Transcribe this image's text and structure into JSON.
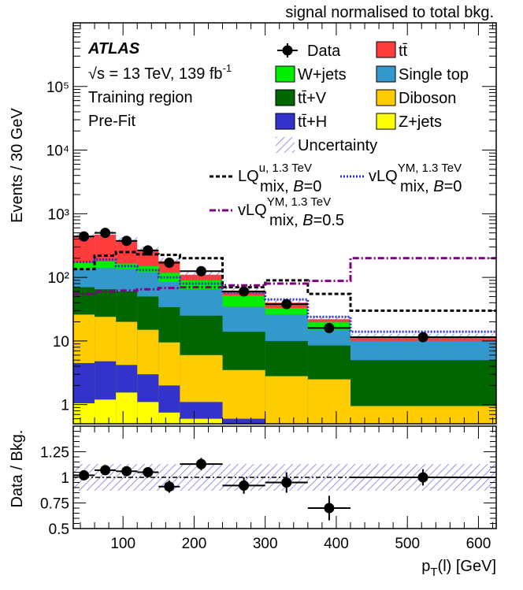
{
  "header_note": "signal normalised to total bkg.",
  "atlas_label": "ATLAS",
  "energy_label": "√s = 13 TeV, 139 fb",
  "lumi_superscript": "-1",
  "region_label": "Training region",
  "fit_label": "Pre-Fit",
  "x_axis_label": "p",
  "x_axis_label_sub": "T",
  "x_axis_label_rest": "(l) [GeV]",
  "y_axis_label_main": "Events / 30 GeV",
  "y_axis_label_ratio": "Data / Bkg.",
  "legend": {
    "data": "Data",
    "ttbar": "tt̄",
    "wjets": "W+jets",
    "singletop": "Single top",
    "ttv": "tt̄+V",
    "diboson": "Diboson",
    "tth": "tt̄+H",
    "zjets": "Z+jets",
    "uncertainty": "Uncertainty",
    "sig1_main": "LQ",
    "sig1_sup": "u, 1.3 TeV",
    "sig1_sub": "mix, ",
    "sig1_b": "B",
    "sig1_bval": "=0",
    "sig2_main": "vLQ",
    "sig2_sup": "YM, 1.3 TeV",
    "sig2_sub": "mix, ",
    "sig2_b": "B",
    "sig2_bval": "=0",
    "sig3_main": "vLQ",
    "sig3_sup": "YM, 1.3 TeV",
    "sig3_sub": "mix, ",
    "sig3_b": "B",
    "sig3_bval": "=0.5"
  },
  "colors": {
    "ttbar": "#ff3b3b",
    "wjets": "#00ee00",
    "singletop": "#3399cc",
    "ttv": "#006600",
    "diboson": "#ffcc00",
    "tth": "#3333cc",
    "zjets": "#ffff00",
    "uncertainty": "#6666dd",
    "sig1": "#000000",
    "sig2": "#3333cc",
    "sig3": "#800080"
  },
  "chart_data": [
    {
      "type": "bar",
      "subtype": "stacked-histogram",
      "ylabel": "Events / 30 GeV",
      "yscale": "log",
      "ylim": [
        0.5,
        1000000
      ],
      "xlim": [
        30,
        625
      ],
      "x_ticks": [
        100,
        200,
        300,
        400,
        500,
        600
      ],
      "y_ticks": [
        1,
        10,
        100,
        1000,
        10000,
        100000
      ],
      "y_tick_labels": [
        "1",
        "10",
        "10²",
        "10³",
        "10⁴",
        "10⁵"
      ],
      "bin_edges": [
        30,
        60,
        90,
        120,
        150,
        180,
        240,
        300,
        360,
        420,
        625
      ],
      "stack_order_bottom_to_top": [
        "zjets",
        "tth",
        "diboson",
        "ttv",
        "singletop",
        "wjets",
        "ttbar"
      ],
      "stack_cumulative": {
        "zjets": [
          1.05,
          1.2,
          1.55,
          1.1,
          0.75,
          0.6,
          0.5,
          0.5,
          0.5,
          0.5
        ],
        "tth": [
          4.5,
          4.8,
          4.2,
          3.0,
          2.0,
          1.1,
          0.6,
          0.5,
          0.5,
          0.5
        ],
        "diboson": [
          26,
          24,
          20,
          15,
          9.5,
          6.0,
          3.5,
          2.8,
          2.5,
          0.95
        ],
        "ttv": [
          70,
          65,
          60,
          50,
          34,
          25,
          14,
          10,
          8.5,
          5.0
        ],
        "singletop": [
          135,
          140,
          135,
          120,
          85,
          65,
          35,
          26,
          15,
          10
        ],
        "wjets": [
          170,
          180,
          165,
          150,
          118,
          90,
          52,
          33,
          20,
          10
        ],
        "ttbar": [
          430,
          470,
          380,
          270,
          180,
          110,
          62,
          40,
          22,
          11.5
        ]
      },
      "data": {
        "name": "Data",
        "x": [
          45,
          75,
          105,
          135,
          165,
          210,
          270,
          330,
          390,
          522
        ],
        "y": [
          440,
          500,
          375,
          265,
          170,
          125,
          60,
          38,
          16,
          11.5
        ]
      },
      "signals": [
        {
          "name": "LQ^{u, 1.3 TeV}_{mix, B=0}",
          "values": [
            135,
            220,
            250,
            230,
            225,
            200,
            70,
            90,
            55,
            30
          ]
        },
        {
          "name": "vLQ^{YM, 1.3 TeV}_{mix, B=0}",
          "values": [
            175,
            190,
            150,
            130,
            100,
            80,
            58,
            45,
            24,
            14
          ]
        },
        {
          "name": "vLQ^{YM, 1.3 TeV}_{mix, B=0.5}",
          "values": [
            55,
            60,
            62,
            65,
            68,
            70,
            75,
            80,
            88,
            200
          ]
        }
      ]
    },
    {
      "type": "scatter",
      "subtype": "ratio",
      "ylabel": "Data / Bkg.",
      "xlabel": "p_T(l) [GeV]",
      "ylim": [
        0.5,
        1.5
      ],
      "xlim": [
        30,
        625
      ],
      "y_ticks": [
        0.5,
        0.75,
        1,
        1.25
      ],
      "y_tick_labels": [
        "0.5",
        "0.75",
        "1",
        "1.25"
      ],
      "x_ticks": [
        100,
        200,
        300,
        400,
        500,
        600
      ],
      "x_tick_labels": [
        "100",
        "200",
        "300",
        "400",
        "500",
        "600"
      ],
      "points": {
        "x": [
          45,
          75,
          105,
          135,
          165,
          210,
          270,
          330,
          390,
          522
        ],
        "y": [
          1.02,
          1.07,
          1.06,
          1.05,
          0.91,
          1.13,
          0.92,
          0.95,
          0.7,
          1.0
        ],
        "yerr": [
          0.03,
          0.04,
          0.04,
          0.05,
          0.06,
          0.06,
          0.08,
          0.1,
          0.12,
          0.08
        ],
        "xerr": [
          15,
          15,
          15,
          15,
          15,
          30,
          30,
          30,
          30,
          102.5
        ]
      },
      "uncertainty_band": [
        1.13,
        1.13,
        1.13,
        1.13,
        1.13,
        1.13,
        1.13,
        1.13,
        1.13,
        1.13
      ],
      "uncertainty_band_low": [
        0.87,
        0.87,
        0.87,
        0.87,
        0.87,
        0.87,
        0.87,
        0.87,
        0.87,
        0.87
      ],
      "reference_line": 1
    }
  ]
}
